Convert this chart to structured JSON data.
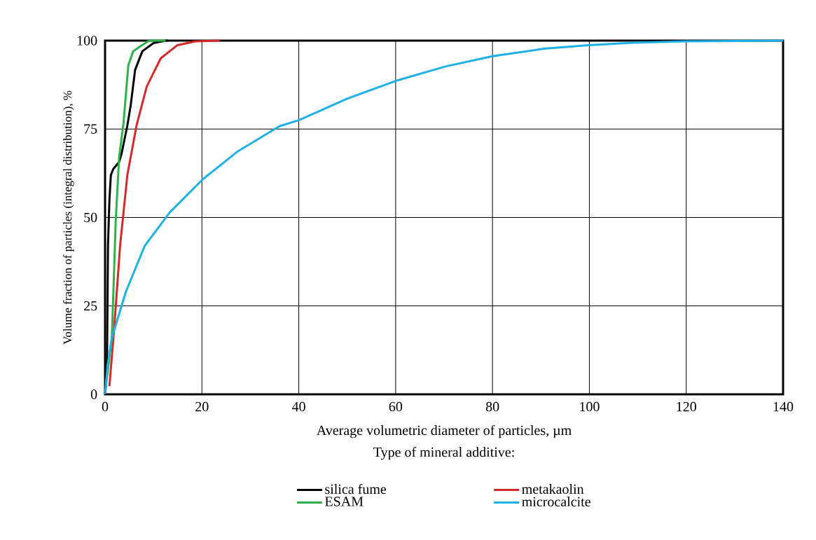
{
  "chart_data": {
    "type": "line",
    "xlabel": "Average volumetric diameter of particles, µm",
    "ylabel": "Volume fraction of particles (integral distribution), %",
    "legend_title": "Type of mineral additive:",
    "legend": "bottom",
    "grid": true,
    "line_style": "solid",
    "marker": "none",
    "xlim": [
      0,
      140
    ],
    "ylim": [
      0,
      100
    ],
    "xticks": [
      0,
      20,
      40,
      60,
      80,
      100,
      120,
      140
    ],
    "yticks": [
      0,
      25,
      50,
      75,
      100
    ],
    "series": [
      {
        "name": "silica fume",
        "color": "#000000",
        "x": [
          0,
          0.2,
          0.4,
          0.6,
          0.9,
          1.2,
          1.7,
          2.9,
          3.4,
          4.6,
          5.3,
          6.2,
          7.7,
          10,
          12.5,
          13
        ],
        "values": [
          0,
          3,
          9,
          42,
          55,
          62,
          63.7,
          65.7,
          68,
          76,
          81.8,
          91.7,
          97,
          99.3,
          100,
          100
        ]
      },
      {
        "name": "metakaolin",
        "color": "#d42a2a",
        "x": [
          0.9,
          1.9,
          3.1,
          4.6,
          6.5,
          8.6,
          11.5,
          14.9,
          18.7,
          23.7
        ],
        "values": [
          2.3,
          19,
          42,
          62,
          76,
          87,
          95,
          98.7,
          99.8,
          100
        ]
      },
      {
        "name": "ESAM",
        "color": "#2db34a",
        "x": [
          0.2,
          1.4,
          2.2,
          2.9,
          3.8,
          4.8,
          5.8,
          7.2,
          9.1,
          12.5
        ],
        "values": [
          2.6,
          16,
          49,
          67,
          76.6,
          93,
          97,
          98.3,
          100,
          100
        ]
      },
      {
        "name": "microcalcite",
        "color": "#1fb0e6",
        "x": [
          0,
          0.5,
          1.4,
          4.3,
          8.2,
          13.4,
          20.1,
          27.3,
          36,
          40,
          50,
          60,
          70.3,
          80,
          90.6,
          99.9,
          109,
          120,
          140
        ],
        "values": [
          0,
          8,
          16,
          29,
          42,
          51.5,
          60.7,
          68.6,
          75.8,
          77.5,
          83.6,
          88.6,
          92.7,
          95.6,
          97.7,
          98.7,
          99.4,
          99.8,
          100
        ]
      }
    ]
  }
}
